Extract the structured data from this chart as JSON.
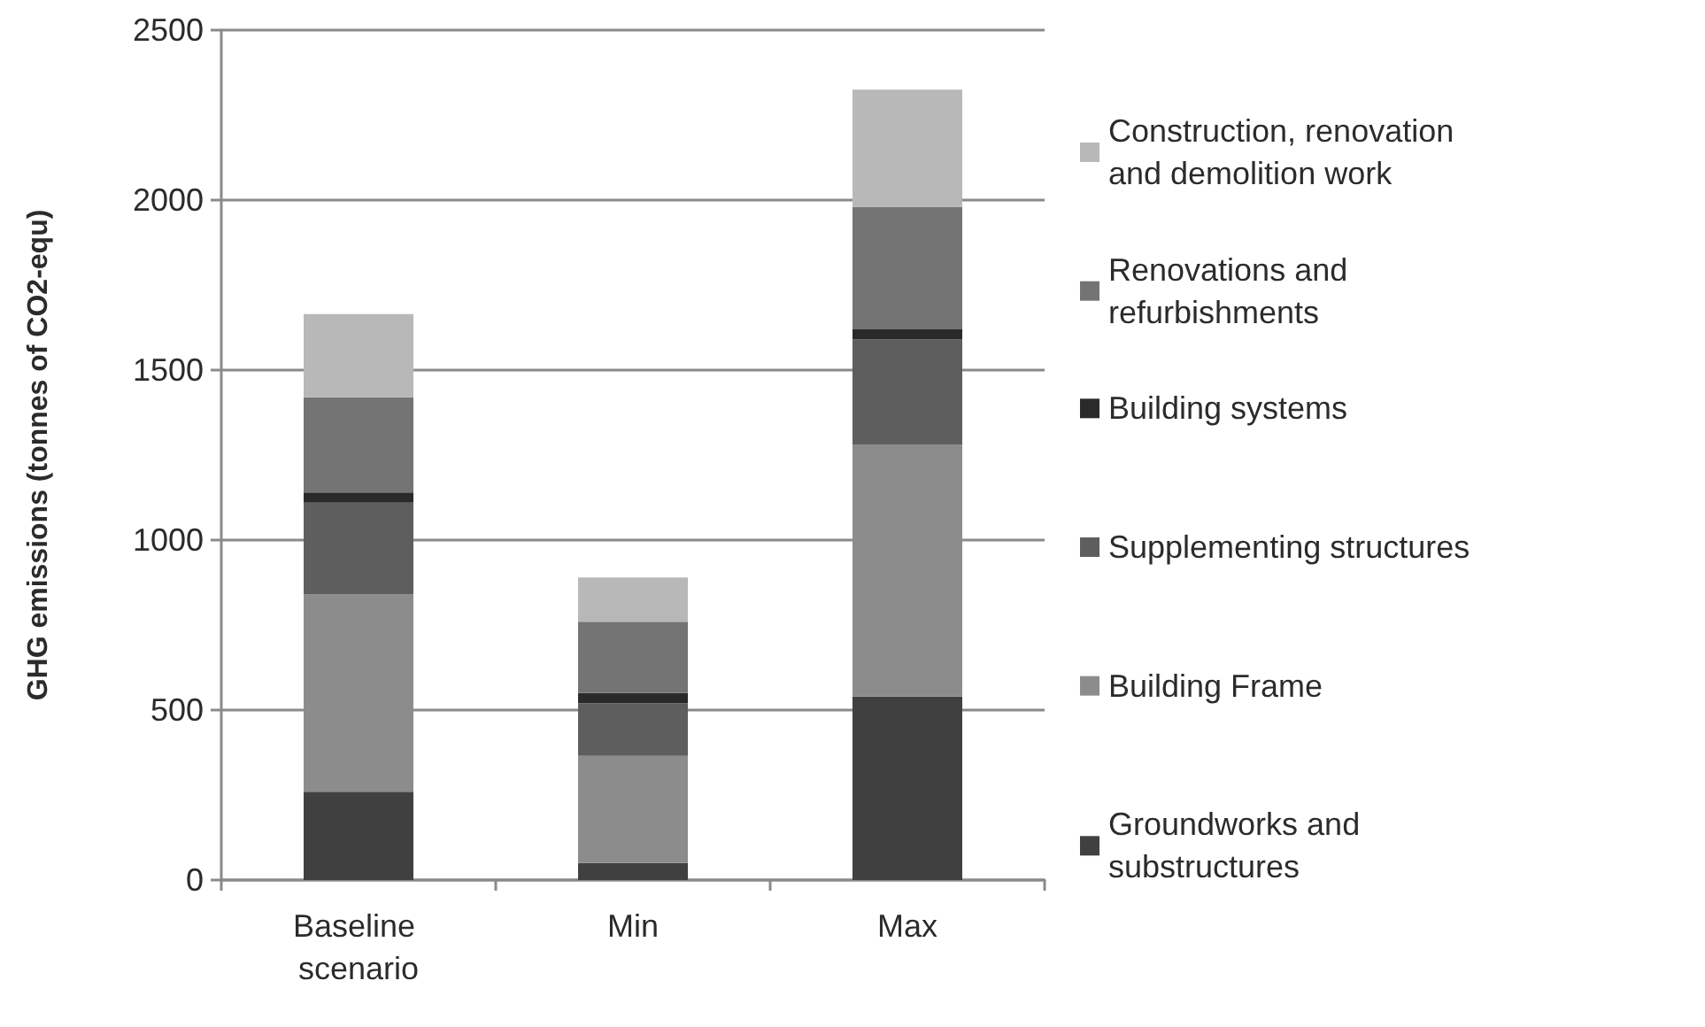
{
  "chart_data": {
    "type": "bar",
    "stacked": true,
    "ylabel": "GHG emissions (tonnes of CO2-equ)",
    "categories": [
      "Baseline scenario",
      "Min",
      "Max"
    ],
    "series": [
      {
        "name": "Groundworks and substructures",
        "color": "#404040",
        "values": [
          260,
          50,
          540
        ]
      },
      {
        "name": "Building Frame",
        "color": "#8c8c8c",
        "values": [
          580,
          315,
          740
        ]
      },
      {
        "name": "Supplementing structures",
        "color": "#5e5e5e",
        "values": [
          270,
          155,
          310
        ]
      },
      {
        "name": "Building systems",
        "color": "#2a2a2a",
        "values": [
          30,
          30,
          30
        ]
      },
      {
        "name": "Renovations and refurbishments",
        "color": "#747474",
        "values": [
          280,
          210,
          360
        ]
      },
      {
        "name": "Construction, renovation and demolition work",
        "color": "#b8b8b8",
        "values": [
          245,
          130,
          345
        ]
      }
    ],
    "ylim": [
      0,
      2500
    ],
    "yticks": [
      0,
      500,
      1000,
      1500,
      2000,
      2500
    ],
    "grid": "y",
    "legend": "right"
  }
}
